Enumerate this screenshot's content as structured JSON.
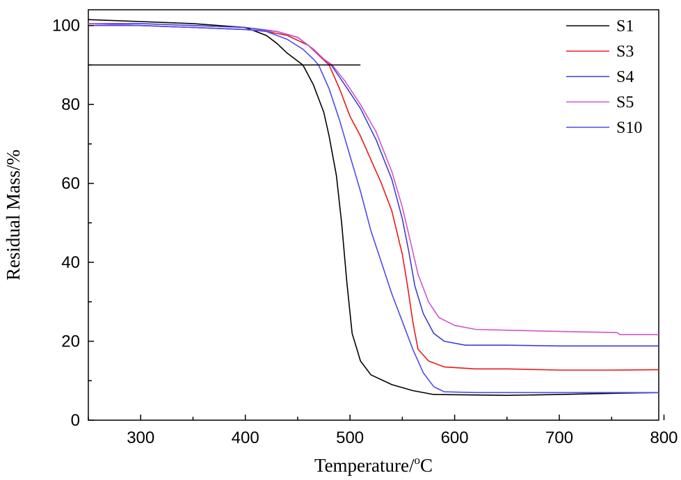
{
  "chart_data": {
    "type": "line",
    "xlabel": "Temperature/",
    "xlabel_sup": "o",
    "xlabel_unit": "C",
    "ylabel": "Residual Mass/%",
    "xlim": [
      250,
      795
    ],
    "ylim": [
      0,
      104
    ],
    "xticks": [
      300,
      400,
      500,
      600,
      700,
      800
    ],
    "yticks": [
      0,
      20,
      40,
      60,
      80,
      100
    ],
    "grid": false,
    "legend_position": "top-right",
    "reference_line": {
      "y": 90,
      "x": [
        250,
        510
      ],
      "color": "#000000"
    },
    "series": [
      {
        "name": "S1",
        "color": "#000000",
        "points": [
          [
            250,
            101.5
          ],
          [
            300,
            101
          ],
          [
            350,
            100.5
          ],
          [
            400,
            99.5
          ],
          [
            420,
            97.5
          ],
          [
            430,
            95.5
          ],
          [
            440,
            93
          ],
          [
            450,
            91
          ],
          [
            455,
            90
          ],
          [
            465,
            85
          ],
          [
            475,
            78
          ],
          [
            480,
            72
          ],
          [
            487,
            62
          ],
          [
            492,
            50
          ],
          [
            497,
            35
          ],
          [
            502,
            22
          ],
          [
            510,
            15
          ],
          [
            520,
            11.5
          ],
          [
            540,
            9
          ],
          [
            560,
            7.5
          ],
          [
            580,
            6.5
          ],
          [
            650,
            6.3
          ],
          [
            700,
            6.5
          ],
          [
            750,
            6.8
          ],
          [
            795,
            7
          ]
        ]
      },
      {
        "name": "S3",
        "color": "#e8191c",
        "points": [
          [
            250,
            100.5
          ],
          [
            300,
            100
          ],
          [
            350,
            99.5
          ],
          [
            400,
            99
          ],
          [
            420,
            98.5
          ],
          [
            440,
            97.5
          ],
          [
            460,
            95
          ],
          [
            470,
            92.5
          ],
          [
            480,
            90
          ],
          [
            490,
            84
          ],
          [
            500,
            77
          ],
          [
            510,
            72
          ],
          [
            520,
            66
          ],
          [
            530,
            60
          ],
          [
            540,
            53
          ],
          [
            550,
            42
          ],
          [
            555,
            34
          ],
          [
            560,
            25
          ],
          [
            565,
            18
          ],
          [
            575,
            15
          ],
          [
            590,
            13.5
          ],
          [
            620,
            13
          ],
          [
            650,
            13
          ],
          [
            700,
            12.7
          ],
          [
            750,
            12.7
          ],
          [
            795,
            12.8
          ]
        ]
      },
      {
        "name": "S4",
        "color": "#3d3dd6",
        "points": [
          [
            250,
            100.5
          ],
          [
            300,
            100.5
          ],
          [
            350,
            100
          ],
          [
            400,
            99.5
          ],
          [
            430,
            98.5
          ],
          [
            450,
            97
          ],
          [
            465,
            94
          ],
          [
            475,
            91.5
          ],
          [
            482,
            90
          ],
          [
            495,
            85
          ],
          [
            510,
            79
          ],
          [
            525,
            71
          ],
          [
            540,
            61
          ],
          [
            550,
            51
          ],
          [
            556,
            43
          ],
          [
            562,
            34
          ],
          [
            570,
            27
          ],
          [
            580,
            22
          ],
          [
            590,
            20
          ],
          [
            610,
            19
          ],
          [
            650,
            19
          ],
          [
            700,
            18.8
          ],
          [
            795,
            18.8
          ]
        ]
      },
      {
        "name": "S5",
        "color": "#cc55cc",
        "points": [
          [
            250,
            100.5
          ],
          [
            300,
            100
          ],
          [
            350,
            99.5
          ],
          [
            400,
            99
          ],
          [
            430,
            98.5
          ],
          [
            450,
            97
          ],
          [
            465,
            94
          ],
          [
            475,
            91.5
          ],
          [
            483,
            90
          ],
          [
            495,
            86
          ],
          [
            510,
            80
          ],
          [
            525,
            73
          ],
          [
            540,
            63
          ],
          [
            550,
            54
          ],
          [
            558,
            45
          ],
          [
            565,
            37
          ],
          [
            575,
            30
          ],
          [
            585,
            26
          ],
          [
            600,
            24
          ],
          [
            620,
            23
          ],
          [
            650,
            22.8
          ],
          [
            700,
            22.5
          ],
          [
            755,
            22.2
          ],
          [
            758,
            21.7
          ],
          [
            795,
            21.7
          ]
        ]
      },
      {
        "name": "S10",
        "color": "#4b4bee",
        "points": [
          [
            250,
            100
          ],
          [
            300,
            100
          ],
          [
            350,
            99.5
          ],
          [
            400,
            99
          ],
          [
            420,
            98.5
          ],
          [
            440,
            96.5
          ],
          [
            455,
            94
          ],
          [
            465,
            91.5
          ],
          [
            470,
            90
          ],
          [
            480,
            84
          ],
          [
            490,
            76
          ],
          [
            500,
            67
          ],
          [
            510,
            58
          ],
          [
            520,
            48
          ],
          [
            530,
            40
          ],
          [
            540,
            32
          ],
          [
            550,
            25
          ],
          [
            560,
            18
          ],
          [
            570,
            12
          ],
          [
            580,
            8.5
          ],
          [
            590,
            7.2
          ],
          [
            620,
            7
          ],
          [
            650,
            7
          ],
          [
            700,
            7
          ],
          [
            795,
            7
          ]
        ]
      }
    ]
  }
}
